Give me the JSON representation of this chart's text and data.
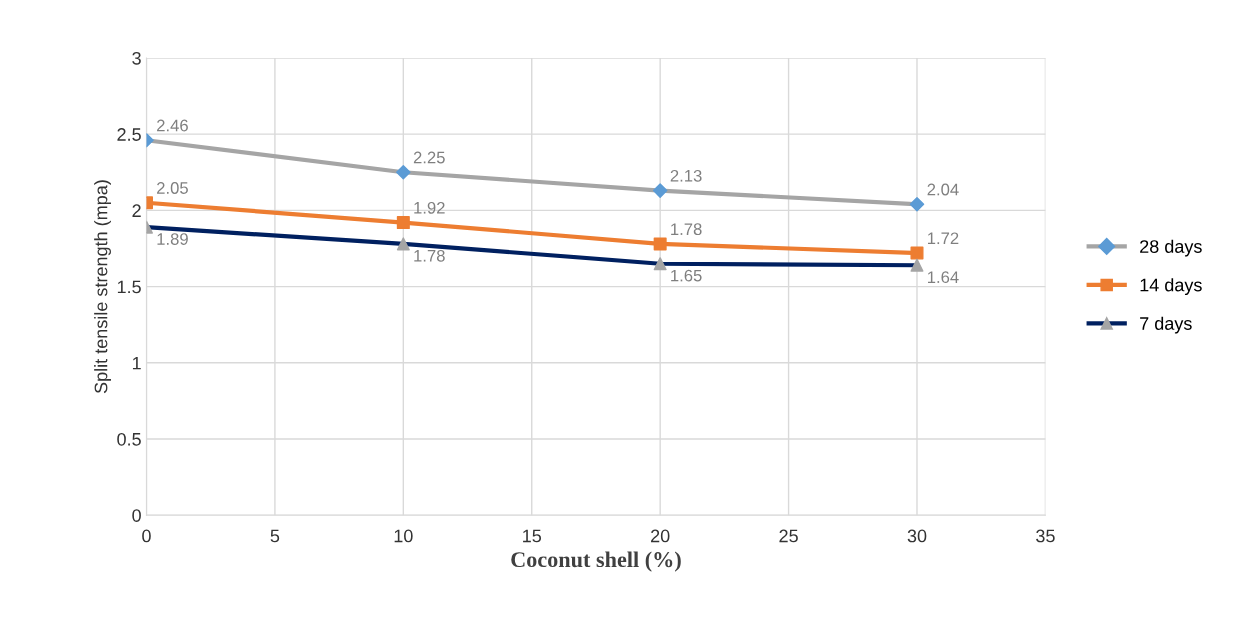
{
  "chart_data": {
    "type": "line",
    "xlabel": "Coconut shell (%)",
    "ylabel": "Split tensile strength (mpa)",
    "x": [
      0,
      10,
      20,
      30
    ],
    "series": [
      {
        "name": "28 days",
        "color": "#a5a5a5",
        "colors": [
          "#5b9bd5",
          "#5b9bd5",
          "#5b9bd5",
          "#5b9bd5"
        ],
        "marker": "diamond",
        "values": [
          2.46,
          2.25,
          2.13,
          2.04
        ]
      },
      {
        "name": "14 days",
        "color": "#ed7d31",
        "colors": [
          "#ed7d31",
          "#ed7d31",
          "#ed7d31",
          "#ed7d31"
        ],
        "marker": "square",
        "values": [
          2.05,
          1.92,
          1.78,
          1.72
        ]
      },
      {
        "name": "7 days",
        "color": "#002060",
        "colors": [
          "#a5a5a5",
          "#a5a5a5",
          "#a5a5a5",
          "#a5a5a5"
        ],
        "marker": "triangle",
        "values": [
          1.89,
          1.78,
          1.65,
          1.64
        ]
      }
    ],
    "xlim": [
      0,
      35
    ],
    "xticks": [
      0,
      5,
      10,
      15,
      20,
      25,
      30,
      35
    ],
    "ylim": [
      0,
      3
    ],
    "yticks": [
      0,
      0.5,
      1,
      1.5,
      2,
      2.5,
      3
    ],
    "grid": true,
    "legend": "right",
    "data_labels": true,
    "line_style": "solid"
  }
}
